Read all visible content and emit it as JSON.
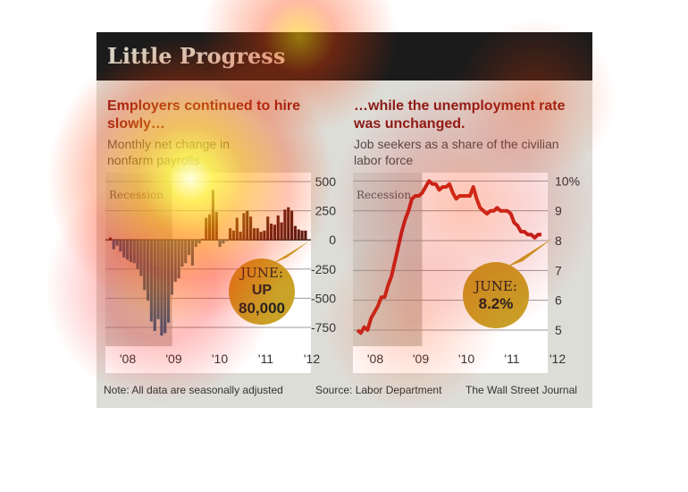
{
  "banner_title": "Little Progress",
  "colors": {
    "bar_negative": "#1f5f86",
    "bar_positive": "#4a1512",
    "line": "#c1231d",
    "callout": "#c9a227",
    "recession": "#cfcfc8"
  },
  "left": {
    "headline": "Employers continued to hire slowly…",
    "subtitle": "Monthly net change in nonfarm payrolls",
    "recession_label": "Recession",
    "callout_line1": "JUNE:",
    "callout_line2": "UP",
    "callout_line3": "80,000"
  },
  "right": {
    "headline": "…while the unemployment rate was unchanged.",
    "subtitle": "Job seekers as a share of the civilian labor force",
    "recession_label": "Recession",
    "callout_line1": "JUNE:",
    "callout_line2": "8.2%"
  },
  "footer": {
    "note": "Note: All data are seasonally adjusted",
    "source": "Source: Labor Department",
    "credit": "The Wall Street Journal"
  },
  "chart_data": [
    {
      "type": "bar",
      "title": "Employers continued to hire slowly…",
      "subtitle": "Monthly net change in nonfarm payrolls",
      "x_tick_labels": [
        "'08",
        "'09",
        "'10",
        "'11",
        "'12"
      ],
      "y_ticks": [
        500,
        250,
        0,
        -250,
        -500,
        -750
      ],
      "y_tick_labels": [
        "500",
        "250",
        "0",
        "-250",
        "-500",
        "-750"
      ],
      "ylim": [
        -850,
        500
      ],
      "recession": [
        0,
        18
      ],
      "values": [
        20,
        -80,
        -50,
        -100,
        -150,
        -170,
        -190,
        -200,
        -250,
        -310,
        -430,
        -520,
        -700,
        -780,
        -680,
        -820,
        -800,
        -710,
        -470,
        -360,
        -330,
        -230,
        -200,
        -130,
        -220,
        -60,
        -30,
        10,
        190,
        220,
        430,
        240,
        -60,
        -30,
        -10,
        100,
        80,
        190,
        70,
        230,
        250,
        200,
        100,
        100,
        70,
        80,
        200,
        140,
        130,
        210,
        150,
        260,
        280,
        250,
        120,
        90,
        80,
        80
      ],
      "annotation": "JUNE: UP 80,000"
    },
    {
      "type": "line",
      "title": "…while the unemployment rate was unchanged.",
      "subtitle": "Job seekers as a share of the civilian labor force",
      "x_tick_labels": [
        "'08",
        "'09",
        "'10",
        "'11",
        "'12"
      ],
      "y_ticks": [
        10,
        9,
        8,
        7,
        6,
        5
      ],
      "y_tick_labels": [
        "10%",
        "9",
        "8",
        "7",
        "6",
        "5"
      ],
      "ylim": [
        4.7,
        10.1
      ],
      "recession": [
        0,
        18
      ],
      "values": [
        5.0,
        4.9,
        5.1,
        5.0,
        5.4,
        5.6,
        5.8,
        6.1,
        6.1,
        6.5,
        6.8,
        7.3,
        7.8,
        8.3,
        8.7,
        9.0,
        9.4,
        9.5,
        9.5,
        9.6,
        9.8,
        10.0,
        9.9,
        9.9,
        9.7,
        9.8,
        9.8,
        9.9,
        9.6,
        9.4,
        9.5,
        9.5,
        9.5,
        9.5,
        9.8,
        9.4,
        9.1,
        9.0,
        8.9,
        9.0,
        9.0,
        9.1,
        9.0,
        9.0,
        9.0,
        8.9,
        8.6,
        8.5,
        8.3,
        8.3,
        8.2,
        8.2,
        8.1,
        8.2,
        8.2
      ],
      "annotation": "JUNE: 8.2%"
    }
  ]
}
